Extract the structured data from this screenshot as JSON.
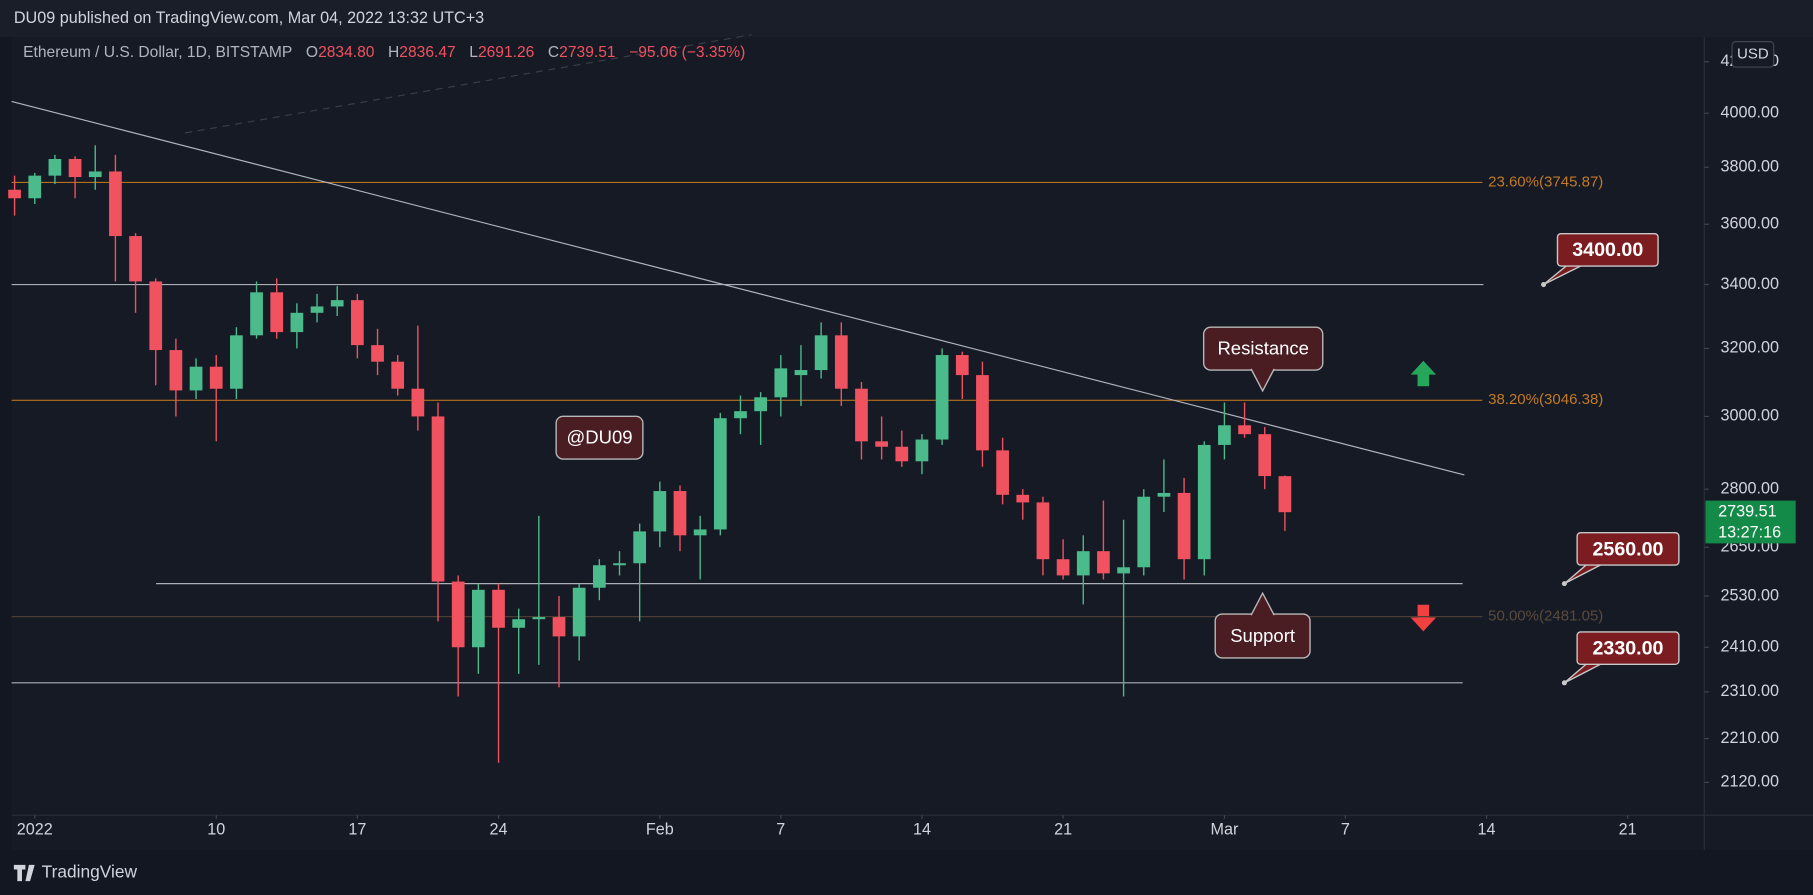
{
  "header": "DU09 published on TradingView.com, Mar 04, 2022 13:32 UTC+3",
  "footer": "TradingView",
  "chart_data": {
    "type": "candlestick",
    "title": "Ethereum / U.S. Dollar, 1D, BITSTAMP",
    "quote_keys": [
      "O",
      "H",
      "L",
      "C"
    ],
    "quote": [
      {
        "value": 2834.8,
        "label": "2834.80"
      },
      {
        "value": 2836.47,
        "label": "2836.47"
      },
      {
        "value": 2691.26,
        "label": "2691.26"
      },
      {
        "value": 2739.51,
        "label": "2739.51"
      }
    ],
    "change": "−95.06 (−3.35%)",
    "currency": "USD",
    "up_color": "#4cbb8c",
    "down_color": "#f0525f",
    "log_scale": true,
    "xlim": [
      -1.15,
      82.8
    ],
    "ylim": [
      2055,
      4300
    ],
    "xticks": [
      {
        "value": 0,
        "label": "2022"
      },
      {
        "value": 9,
        "label": "10"
      },
      {
        "value": 16,
        "label": "17"
      },
      {
        "value": 23,
        "label": "24"
      },
      {
        "value": 31,
        "label": "Feb"
      },
      {
        "value": 37,
        "label": "7"
      },
      {
        "value": 44,
        "label": "14"
      },
      {
        "value": 51,
        "label": "21"
      },
      {
        "value": 59,
        "label": "Mar"
      },
      {
        "value": 65,
        "label": "7"
      },
      {
        "value": 72,
        "label": "14"
      },
      {
        "value": 79,
        "label": "21"
      }
    ],
    "yticks": [
      {
        "value": 4200,
        "label": "4200.00"
      },
      {
        "value": 4000,
        "label": "4000.00"
      },
      {
        "value": 3800,
        "label": "3800.00"
      },
      {
        "value": 3600,
        "label": "3600.00"
      },
      {
        "value": 3400,
        "label": "3400.00"
      },
      {
        "value": 3200,
        "label": "3200.00"
      },
      {
        "value": 3000,
        "label": "3000.00"
      },
      {
        "value": 2800,
        "label": "2800.00"
      },
      {
        "value": 2650,
        "label": "2650.00"
      },
      {
        "value": 2530,
        "label": "2530.00"
      },
      {
        "value": 2410,
        "label": "2410.00"
      },
      {
        "value": 2310,
        "label": "2310.00"
      },
      {
        "value": 2210,
        "label": "2210.00"
      },
      {
        "value": 2120,
        "label": "2120.00"
      }
    ],
    "x": [
      -1,
      0,
      1,
      2,
      3,
      4,
      5,
      6,
      7,
      8,
      9,
      10,
      11,
      12,
      13,
      14,
      15,
      16,
      17,
      18,
      19,
      20,
      21,
      22,
      23,
      24,
      25,
      26,
      27,
      28,
      29,
      30,
      31,
      32,
      33,
      34,
      35,
      36,
      37,
      38,
      39,
      40,
      41,
      42,
      43,
      44,
      45,
      46,
      47,
      48,
      49,
      50,
      51,
      52,
      53,
      54,
      55,
      56,
      57,
      58,
      59,
      60,
      61,
      62
    ],
    "open": [
      3720,
      3690,
      3770,
      3830,
      3765,
      3785,
      3560,
      3410,
      3195,
      3075,
      3145,
      3080,
      3240,
      3375,
      3250,
      3310,
      3330,
      3350,
      3210,
      3160,
      3080,
      3000,
      2565,
      2410,
      2545,
      2455,
      2475,
      2480,
      2435,
      2550,
      2605,
      2610,
      2690,
      2795,
      2680,
      2695,
      2995,
      3015,
      3055,
      3120,
      3135,
      3240,
      3080,
      2930,
      2915,
      2875,
      2935,
      3180,
      3120,
      2905,
      2785,
      2765,
      2620,
      2580,
      2640,
      2585,
      2600,
      2780,
      2790,
      2620,
      2920,
      2975,
      2950,
      2834.8
    ],
    "high": [
      3770,
      3780,
      3845,
      3840,
      3880,
      3845,
      3570,
      3420,
      3230,
      3170,
      3180,
      3265,
      3410,
      3420,
      3340,
      3370,
      3395,
      3370,
      3260,
      3180,
      3270,
      3040,
      2580,
      2560,
      2560,
      2500,
      2730,
      2530,
      2560,
      2620,
      2640,
      2710,
      2820,
      2810,
      2730,
      3010,
      3060,
      3070,
      3180,
      3210,
      3280,
      3280,
      3100,
      3000,
      2960,
      2950,
      3200,
      3190,
      3160,
      2940,
      2800,
      2780,
      2670,
      2680,
      2770,
      2720,
      2800,
      2880,
      2830,
      2930,
      3040,
      3040,
      2970,
      2836.47
    ],
    "low": [
      3630,
      3670,
      3740,
      3690,
      3720,
      3410,
      3310,
      3090,
      3000,
      3050,
      2930,
      3050,
      3230,
      3230,
      3200,
      3280,
      3300,
      3170,
      3120,
      3060,
      2960,
      2470,
      2300,
      2350,
      2160,
      2350,
      2370,
      2320,
      2380,
      2520,
      2580,
      2470,
      2650,
      2640,
      2570,
      2680,
      2950,
      2920,
      3000,
      3030,
      3110,
      3030,
      2880,
      2880,
      2860,
      2840,
      2920,
      3050,
      2860,
      2760,
      2720,
      2580,
      2570,
      2510,
      2570,
      2300,
      2580,
      2740,
      2570,
      2580,
      2880,
      2940,
      2800,
      2691.26
    ],
    "close": [
      3690,
      3770,
      3830,
      3765,
      3785,
      3560,
      3410,
      3195,
      3075,
      3145,
      3080,
      3240,
      3375,
      3250,
      3310,
      3330,
      3350,
      3210,
      3160,
      3080,
      3000,
      2565,
      2410,
      2545,
      2455,
      2475,
      2480,
      2435,
      2550,
      2605,
      2610,
      2690,
      2795,
      2680,
      2695,
      2995,
      3015,
      3055,
      3140,
      3135,
      3240,
      3080,
      2930,
      2915,
      2875,
      2935,
      3180,
      3120,
      2905,
      2785,
      2765,
      2620,
      2580,
      2640,
      2585,
      2600,
      2780,
      2790,
      2620,
      2920,
      2975,
      2950,
      2835,
      2739.51
    ],
    "trendline": {
      "x": [
        -1.15,
        70.9
      ],
      "y": [
        4045,
        2838
      ]
    },
    "fib_levels": [
      {
        "value": 3745.87,
        "label": "23.60%(3745.87)"
      },
      {
        "value": 3046.38,
        "label": "38.20%(3046.38)"
      },
      {
        "value": 2481.05,
        "label": "50.00%(2481.05)"
      }
    ],
    "levels": [
      {
        "value": 3400,
        "label": "3400.00"
      },
      {
        "value": 2560,
        "label": "2560.00"
      },
      {
        "value": 2330,
        "label": "2330.00"
      }
    ],
    "notes": [
      "Resistance",
      "Support",
      "@DU09"
    ],
    "last_price": {
      "value": 2739.51,
      "label": "2739.51"
    },
    "countdown": "13:27:16"
  }
}
